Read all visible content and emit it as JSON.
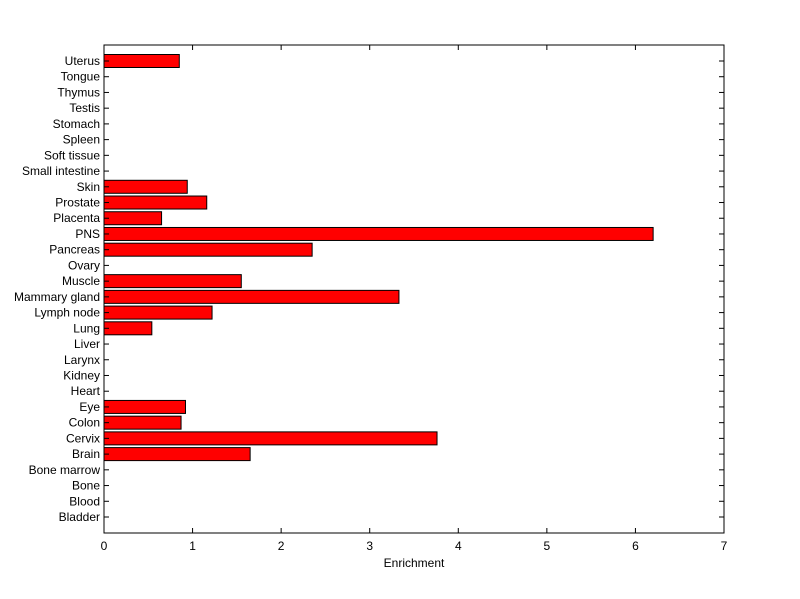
{
  "chart_data": {
    "type": "bar",
    "orientation": "horizontal",
    "title": "",
    "xlabel": "Enrichment",
    "ylabel": "",
    "xlim": [
      0,
      7
    ],
    "xticks": [
      "0",
      "1",
      "2",
      "3",
      "4",
      "5",
      "6",
      "7"
    ],
    "grid": false,
    "bar_color": "#ff0000",
    "categories": [
      "Uterus",
      "Tongue",
      "Thymus",
      "Testis",
      "Stomach",
      "Spleen",
      "Soft tissue",
      "Small intestine",
      "Skin",
      "Prostate",
      "Placenta",
      "PNS",
      "Pancreas",
      "Ovary",
      "Muscle",
      "Mammary gland",
      "Lymph node",
      "Lung",
      "Liver",
      "Larynx",
      "Kidney",
      "Heart",
      "Eye",
      "Colon",
      "Cervix",
      "Brain",
      "Bone marrow",
      "Bone",
      "Blood",
      "Bladder"
    ],
    "values": [
      0.85,
      0,
      0,
      0,
      0,
      0,
      0,
      0,
      0.94,
      1.16,
      0.65,
      6.2,
      2.35,
      0,
      1.55,
      3.33,
      1.22,
      0.54,
      0,
      0,
      0,
      0,
      0.92,
      0.87,
      3.76,
      1.65,
      0,
      0,
      0,
      0
    ]
  }
}
